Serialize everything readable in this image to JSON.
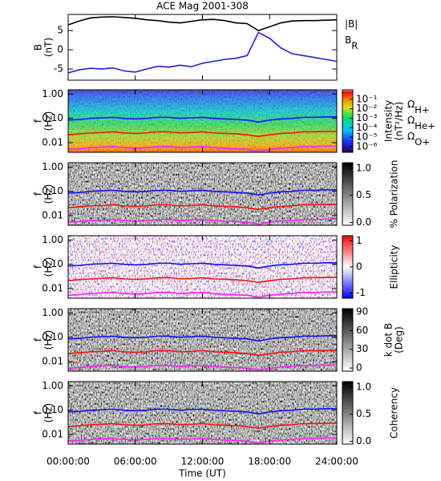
{
  "chart_data": [
    {
      "type": "line",
      "title": "ACE Mag 2001-308",
      "ylabel": [
        "B",
        "(nT)"
      ],
      "x": [
        0,
        1,
        2,
        3,
        4,
        5,
        6,
        7,
        8,
        9,
        10,
        11,
        12,
        13,
        14,
        15,
        16,
        17,
        18,
        19,
        20,
        21,
        22,
        23,
        24
      ],
      "xlim": [
        0,
        24
      ],
      "ylim": [
        -7.9,
        9.2
      ],
      "yticks": [
        5,
        0,
        -5
      ],
      "series": [
        {
          "name": "|B|",
          "color": "#000000",
          "values": [
            6.5,
            7.5,
            8.3,
            8.5,
            8.6,
            8.4,
            8.2,
            7.8,
            7.6,
            7.2,
            7.0,
            7.4,
            7.8,
            7.9,
            7.6,
            7.0,
            6.8,
            5.0,
            6.0,
            7.0,
            7.5,
            7.6,
            7.6,
            7.7,
            7.8
          ]
        },
        {
          "name": "B",
          "sub": "R",
          "color": "#2020e0",
          "values": [
            -6.0,
            -5.2,
            -4.8,
            -5.0,
            -4.7,
            -5.5,
            -5.8,
            -5.0,
            -4.3,
            -4.5,
            -4.0,
            -4.4,
            -3.5,
            -3.0,
            -2.5,
            -2.2,
            -1.5,
            4.5,
            3.0,
            0.5,
            -1.0,
            -1.5,
            -2.0,
            -2.5,
            -3.0
          ]
        }
      ]
    },
    {
      "type": "spectrogram",
      "ylabel": [
        "f",
        "(Hz)"
      ],
      "log": true,
      "ylim": [
        0.004,
        1.5
      ],
      "yticks": [
        {
          "value": 1,
          "label": "1.00"
        },
        {
          "value": 0.1,
          "label": "0.10"
        },
        {
          "value": 0.01,
          "label": "0.01"
        }
      ],
      "colormap": "rainbow",
      "colorbar": {
        "label": [
          "Intensity",
          "(nT²/Hz)"
        ],
        "log": true,
        "lim": [
          2.5e-07,
          1
        ],
        "ticks": [
          {
            "value": 0.1,
            "label": "10⁻¹"
          },
          {
            "value": 0.01,
            "label": "10⁻²"
          },
          {
            "value": 0.001,
            "label": "10⁻³"
          },
          {
            "value": 0.0001,
            "label": "10⁻⁴"
          },
          {
            "value": 1e-05,
            "label": "10⁻⁵"
          },
          {
            "value": 1e-06,
            "label": "10⁻⁶"
          }
        ]
      },
      "x": [
        0,
        1,
        2,
        3,
        4,
        5,
        6,
        7,
        8,
        9,
        10,
        11,
        12,
        13,
        14,
        15,
        16,
        17,
        18,
        19,
        20,
        21,
        22,
        23,
        24
      ],
      "series": [
        {
          "name": "Ω",
          "sub": "H+",
          "color": "#1010ff",
          "values": [
            0.085,
            0.09,
            0.1,
            0.105,
            0.11,
            0.1,
            0.095,
            0.1,
            0.11,
            0.11,
            0.1,
            0.105,
            0.11,
            0.1,
            0.095,
            0.09,
            0.085,
            0.07,
            0.085,
            0.095,
            0.1,
            0.11,
            0.11,
            0.115,
            0.115
          ]
        },
        {
          "name": "Ω",
          "sub": "He+",
          "color": "#ff1010",
          "values": [
            0.021,
            0.023,
            0.025,
            0.026,
            0.028,
            0.025,
            0.024,
            0.025,
            0.028,
            0.028,
            0.025,
            0.026,
            0.028,
            0.025,
            0.024,
            0.023,
            0.021,
            0.018,
            0.021,
            0.024,
            0.025,
            0.028,
            0.028,
            0.029,
            0.029
          ]
        },
        {
          "name": "Ω",
          "sub": "O+",
          "color": "#ff20ff",
          "values": [
            0.0053,
            0.0056,
            0.0063,
            0.0066,
            0.0069,
            0.0063,
            0.0059,
            0.0063,
            0.0069,
            0.0069,
            0.0063,
            0.0066,
            0.0069,
            0.0063,
            0.0059,
            0.0056,
            0.0053,
            0.0044,
            0.0053,
            0.0059,
            0.0063,
            0.0069,
            0.0069,
            0.0072,
            0.0072
          ]
        }
      ]
    },
    {
      "type": "spectrogram",
      "ylabel": [
        "f",
        "(Hz)"
      ],
      "log": true,
      "ylim": [
        0.004,
        1.5
      ],
      "yticks": [
        {
          "value": 1,
          "label": "1.00"
        },
        {
          "value": 0.1,
          "label": "0.10"
        },
        {
          "value": 0.01,
          "label": "0.01"
        }
      ],
      "colormap": "gray",
      "colorbar": {
        "label": [
          "% Polarization"
        ],
        "log": false,
        "lim": [
          -0.05,
          1.1
        ],
        "ticks": [
          {
            "value": 1,
            "label": "1.0"
          },
          {
            "value": 0.5,
            "label": "0.5"
          },
          {
            "value": 0,
            "label": "0.0"
          }
        ]
      }
    },
    {
      "type": "spectrogram",
      "ylabel": [
        "f",
        "(Hz)"
      ],
      "log": true,
      "ylim": [
        0.004,
        1.5
      ],
      "yticks": [
        {
          "value": 1,
          "label": "1.00"
        },
        {
          "value": 0.1,
          "label": "0.10"
        },
        {
          "value": 0.01,
          "label": "0.01"
        }
      ],
      "colormap": "rwb",
      "colorbar": {
        "label": [
          "Ellipticity"
        ],
        "log": false,
        "lim": [
          -1.2,
          1.2
        ],
        "ticks": [
          1,
          0,
          -1
        ]
      }
    },
    {
      "type": "spectrogram",
      "ylabel": [
        "f",
        "(Hz)"
      ],
      "log": true,
      "ylim": [
        0.004,
        1.5
      ],
      "yticks": [
        {
          "value": 1,
          "label": "1.00"
        },
        {
          "value": 0.1,
          "label": "0.10"
        },
        {
          "value": 0.01,
          "label": "0.01"
        }
      ],
      "colormap": "gray",
      "colorbar": {
        "label": [
          "k dot B",
          "(Deg)"
        ],
        "log": false,
        "lim": [
          -5,
          95
        ],
        "ticks": [
          90,
          60,
          30,
          0
        ]
      }
    },
    {
      "type": "spectrogram",
      "ylabel": [
        "f",
        "(Hz)"
      ],
      "log": true,
      "ylim": [
        0.004,
        1.5
      ],
      "yticks": [
        {
          "value": 1,
          "label": "1.00"
        },
        {
          "value": 0.1,
          "label": "0.10"
        },
        {
          "value": 0.01,
          "label": "0.01"
        }
      ],
      "colormap": "gray",
      "colorbar": {
        "label": [
          "Coherency"
        ],
        "log": false,
        "lim": [
          -0.05,
          1.1
        ],
        "ticks": [
          {
            "value": 1,
            "label": "1.0"
          },
          {
            "value": 0.5,
            "label": "0.5"
          },
          {
            "value": 0,
            "label": "0.0"
          }
        ]
      },
      "xlim": [
        0,
        24
      ],
      "xticks": [
        {
          "value": 0,
          "label": "00:00:00"
        },
        {
          "value": 6,
          "label": "06:00:00"
        },
        {
          "value": 12,
          "label": "12:00:00"
        },
        {
          "value": 18,
          "label": "18:00:00"
        },
        {
          "value": 24,
          "label": "24:00:00"
        }
      ],
      "xlabel": "Time (UT)"
    }
  ]
}
